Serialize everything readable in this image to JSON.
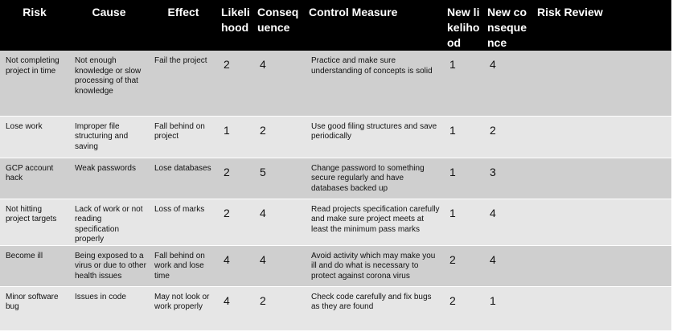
{
  "headers": {
    "risk": "Risk",
    "cause": "Cause",
    "effect": "Effect",
    "likelihood": "Likelihood",
    "consequence": "Consequence",
    "control": "Control Measure",
    "new_likelihood": "New likelihood",
    "new_consequence": "New consequence",
    "review": "Risk Review"
  },
  "rows": [
    {
      "risk": "Not completing project in time",
      "cause": "Not enough knowledge or slow processing of that knowledge",
      "effect": "Fail the project",
      "likelihood": "2",
      "consequence": "4",
      "control": "Practice and make sure understanding of concepts is solid",
      "new_likelihood": "1",
      "new_consequence": "4",
      "review": ""
    },
    {
      "risk": "Lose work",
      "cause": "Improper file structuring and saving",
      "effect": "Fall behind on project",
      "likelihood": "1",
      "consequence": "2",
      "control": "Use good filing structures and save periodically",
      "new_likelihood": "1",
      "new_consequence": "2",
      "review": ""
    },
    {
      "risk": "GCP account hack",
      "cause": "Weak passwords",
      "effect": "Lose databases",
      "likelihood": "2",
      "consequence": "5",
      "control": "Change password to something secure regularly and have databases backed up",
      "new_likelihood": "1",
      "new_consequence": "3",
      "review": ""
    },
    {
      "risk": "Not hitting project targets",
      "cause": "Lack of work or not reading specification properly",
      "effect": "Loss of marks",
      "likelihood": "2",
      "consequence": "4",
      "control": "Read projects specification carefully and make sure project meets at least the minimum pass marks",
      "new_likelihood": "1",
      "new_consequence": "4",
      "review": ""
    },
    {
      "risk": "Become ill",
      "cause": "Being exposed to a virus or due to other health issues",
      "effect": "Fall behind on work and lose time",
      "likelihood": "4",
      "consequence": "4",
      "control": "Avoid activity which may make you ill and do what is necessary to protect against corona virus",
      "new_likelihood": "2",
      "new_consequence": "4",
      "review": ""
    },
    {
      "risk": "Minor software bug",
      "cause": "Issues in code",
      "effect": "May not look or work properly",
      "likelihood": "4",
      "consequence": "2",
      "control": "Check code carefully and fix bugs as they are found",
      "new_likelihood": "2",
      "new_consequence": "1",
      "review": ""
    }
  ]
}
